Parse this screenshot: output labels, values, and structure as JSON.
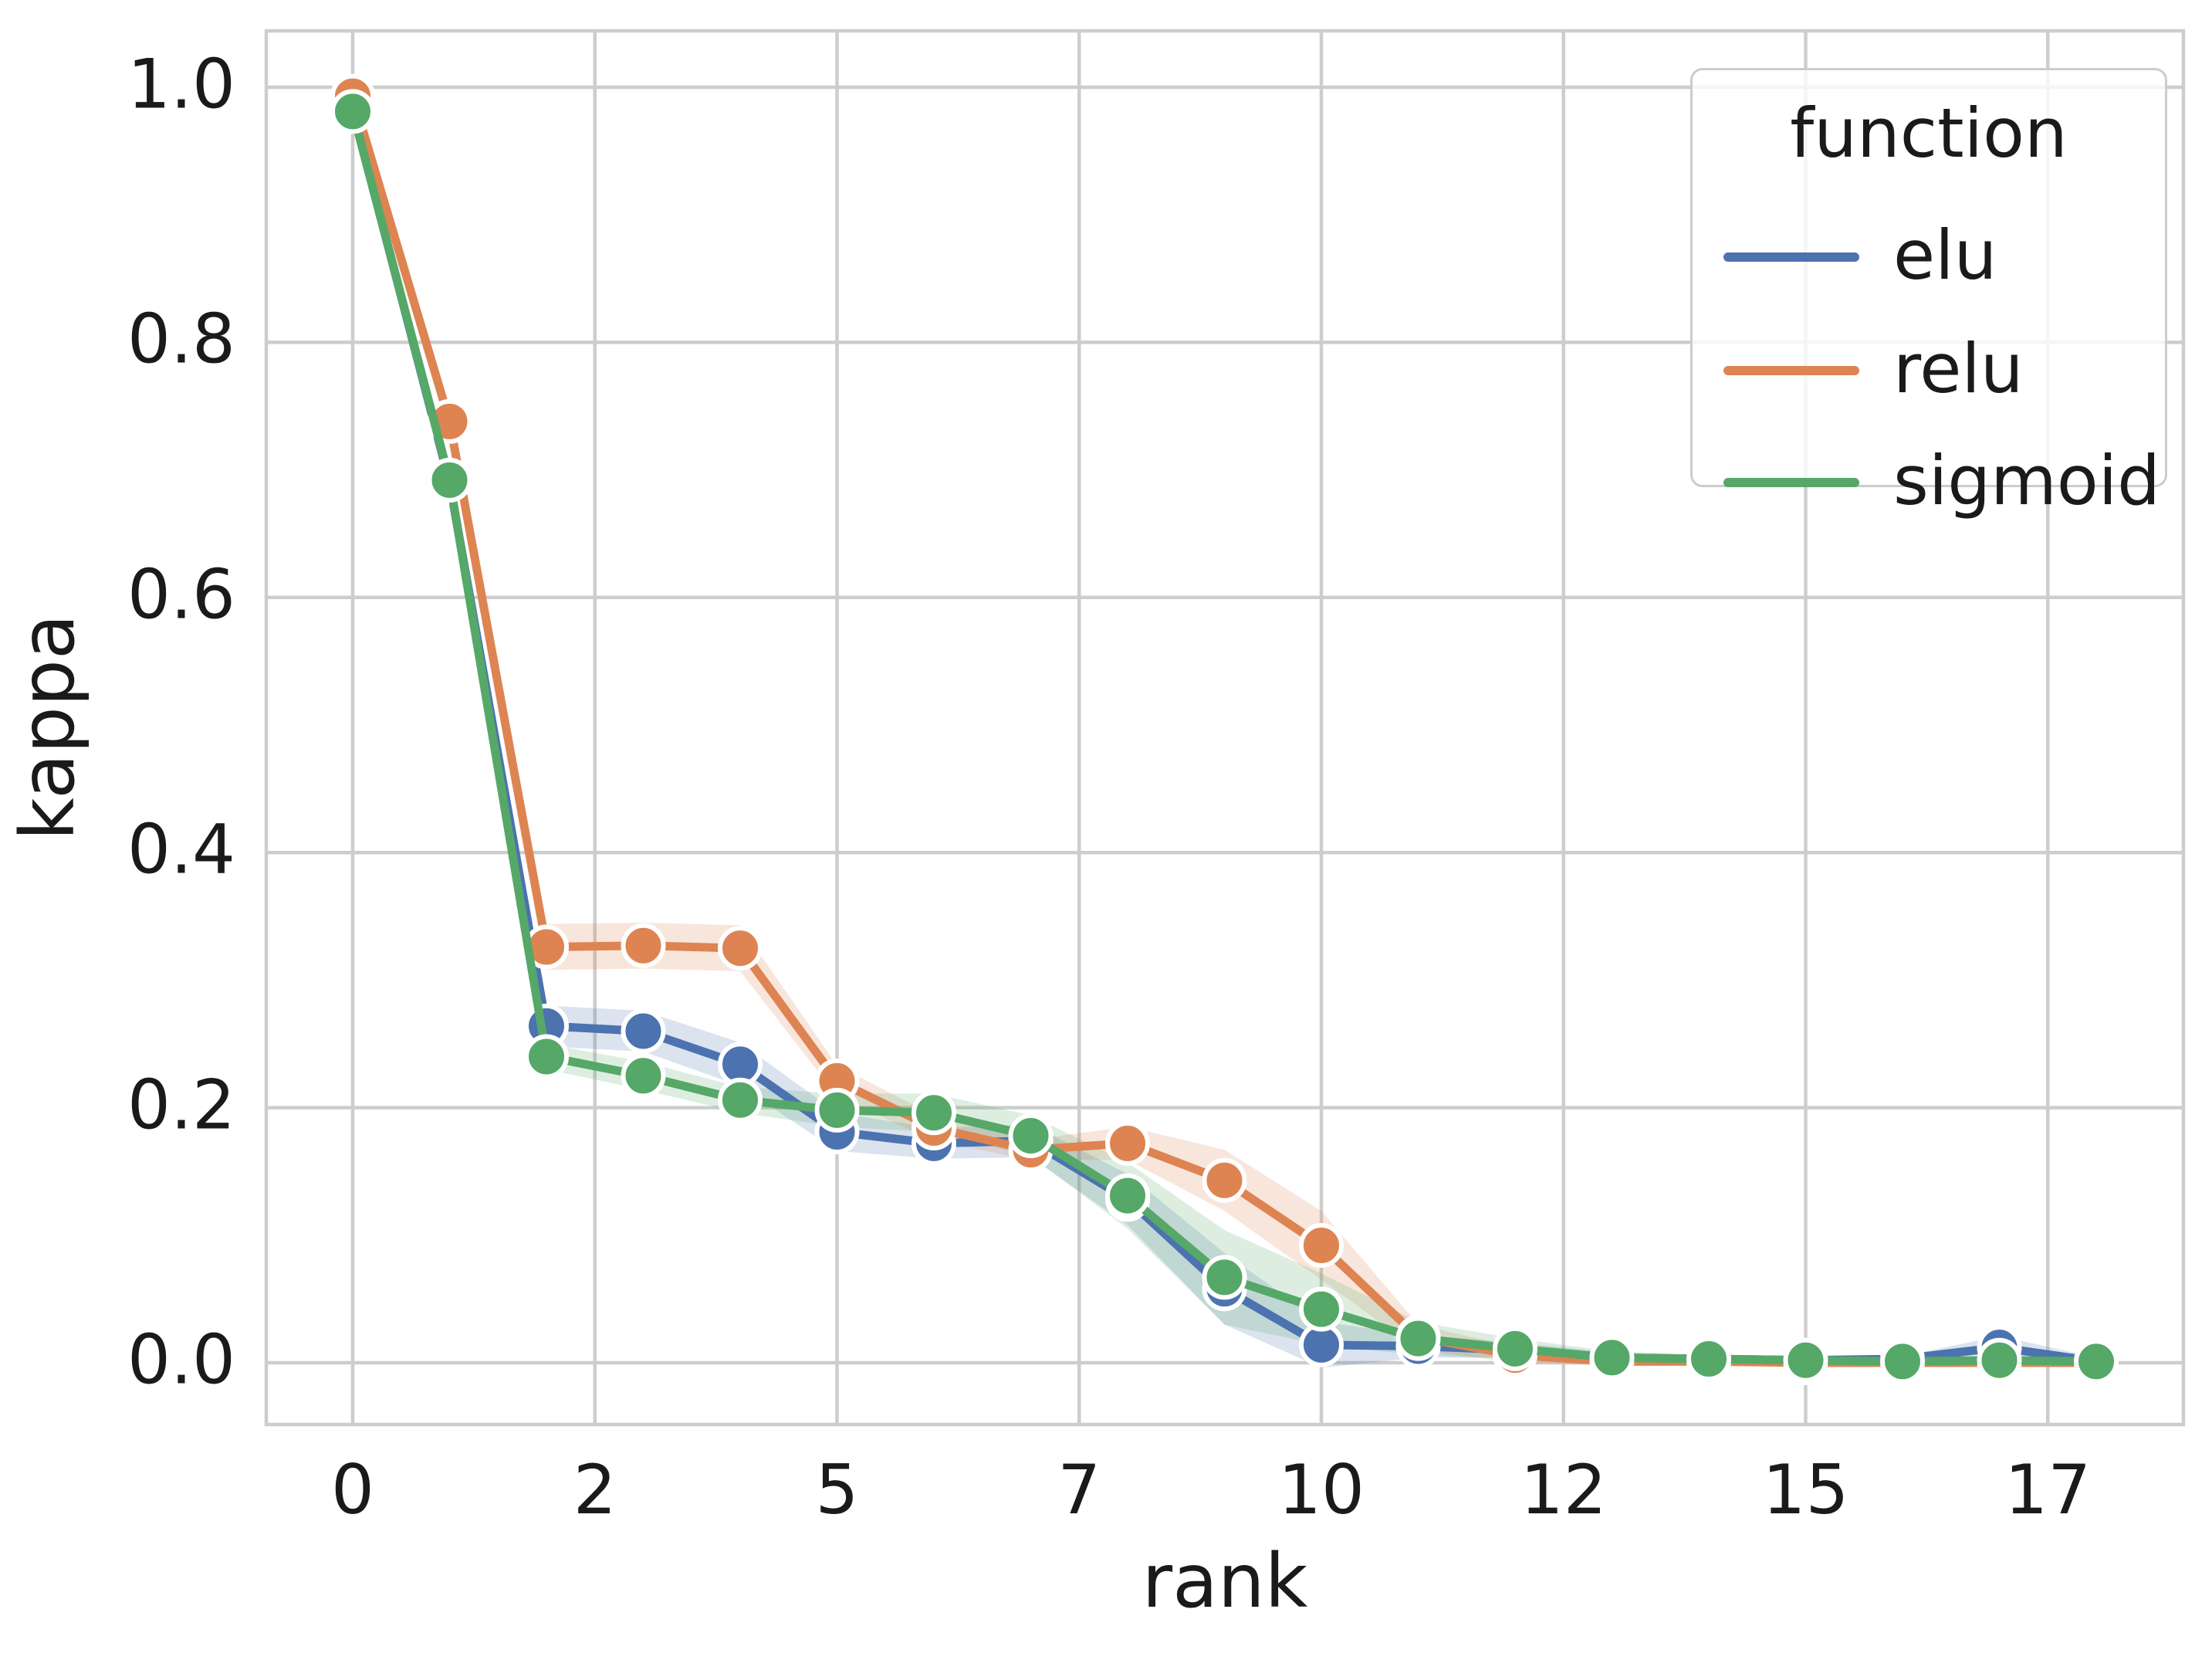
{
  "legend": {
    "title": "function"
  },
  "chart_data": {
    "type": "line",
    "title": "",
    "xlabel": "rank",
    "ylabel": "kappa",
    "grid": true,
    "legend_position": "upper right",
    "ci_alpha": 0.2,
    "marker": "o",
    "xlim": [
      -0.9,
      18.9
    ],
    "ylim": [
      -0.048,
      1.044
    ],
    "xticks": {
      "positions": [
        0,
        2.5,
        5,
        7.5,
        10,
        12.5,
        15,
        17.5
      ],
      "labels": [
        "0",
        "2",
        "5",
        "7",
        "10",
        "12",
        "15",
        "17"
      ]
    },
    "yticks": {
      "positions": [
        1.0,
        0.8,
        0.6,
        0.4,
        0.2,
        0.0
      ],
      "labels": [
        "1.0",
        "0.8",
        "0.6",
        "0.4",
        "0.2",
        "0.0"
      ]
    },
    "x": [
      0,
      1,
      2,
      3,
      4,
      5,
      6,
      7,
      8,
      9,
      10,
      11,
      12,
      13,
      14,
      15,
      16,
      17,
      18
    ],
    "series": [
      {
        "name": "elu",
        "color": "#4c72b0",
        "values": [
          0.982,
          0.69,
          0.264,
          0.26,
          0.234,
          0.181,
          0.172,
          0.174,
          0.128,
          0.058,
          0.014,
          0.013,
          0.01,
          0.004,
          0.003,
          0.002,
          0.003,
          0.012,
          0.001
        ],
        "ci_half_width": [
          0.004,
          0.008,
          0.016,
          0.016,
          0.017,
          0.015,
          0.012,
          0.013,
          0.02,
          0.028,
          0.018,
          0.009,
          0.006,
          0.004,
          0.003,
          0.002,
          0.002,
          0.009,
          0.003
        ]
      },
      {
        "name": "relu",
        "color": "#dd8452",
        "values": [
          0.993,
          0.738,
          0.326,
          0.327,
          0.325,
          0.221,
          0.184,
          0.167,
          0.172,
          0.143,
          0.092,
          0.02,
          0.006,
          0.001,
          0.001,
          0.0,
          0.0,
          0.0,
          0.0
        ],
        "ci_half_width": [
          0.003,
          0.007,
          0.018,
          0.018,
          0.018,
          0.012,
          0.01,
          0.008,
          0.013,
          0.024,
          0.027,
          0.01,
          0.006,
          0.003,
          0.002,
          0.002,
          0.002,
          0.002,
          0.002
        ]
      },
      {
        "name": "sigmoid",
        "color": "#55a868",
        "values": [
          0.981,
          0.692,
          0.24,
          0.225,
          0.206,
          0.198,
          0.196,
          0.178,
          0.131,
          0.067,
          0.042,
          0.019,
          0.011,
          0.004,
          0.003,
          0.002,
          0.001,
          0.002,
          0.001
        ],
        "ci_half_width": [
          0.004,
          0.006,
          0.01,
          0.011,
          0.01,
          0.013,
          0.015,
          0.016,
          0.026,
          0.037,
          0.028,
          0.013,
          0.008,
          0.005,
          0.003,
          0.002,
          0.002,
          0.003,
          0.002
        ]
      }
    ]
  }
}
